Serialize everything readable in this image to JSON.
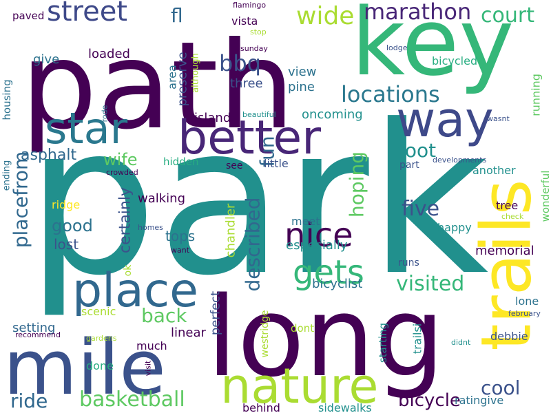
{
  "palette": {
    "background": "#ffffff",
    "dark_purple": "#440154",
    "purple": "#482677",
    "indigo": "#3b528b",
    "blue": "#2c728e",
    "teal": "#21908d",
    "green_teal": "#27ad81",
    "green": "#5dc863",
    "lime": "#aadc32",
    "yellow": "#fde725"
  },
  "words": [
    {
      "text": "park",
      "orientation": "horizontal",
      "color": "#21908d"
    },
    {
      "text": "path",
      "orientation": "horizontal",
      "color": "#440154"
    },
    {
      "text": "key",
      "orientation": "horizontal",
      "color": "#35b779"
    },
    {
      "text": "long",
      "orientation": "horizontal",
      "color": "#440154"
    },
    {
      "text": "mile",
      "orientation": "horizontal",
      "color": "#3b528b"
    },
    {
      "text": "trails",
      "orientation": "vertical",
      "color": "#fde725"
    },
    {
      "text": "nature",
      "orientation": "horizontal",
      "color": "#aadc32"
    },
    {
      "text": "place",
      "orientation": "horizontal",
      "color": "#31688e"
    },
    {
      "text": "way",
      "orientation": "horizontal",
      "color": "#3e4989"
    },
    {
      "text": "better",
      "orientation": "horizontal",
      "color": "#482677"
    },
    {
      "text": "star",
      "orientation": "horizontal",
      "color": "#2a788e"
    },
    {
      "text": "nice",
      "orientation": "horizontal",
      "color": "#440154"
    },
    {
      "text": "gets",
      "orientation": "horizontal",
      "color": "#35b779"
    },
    {
      "text": "street",
      "orientation": "horizontal",
      "color": "#3e4989"
    },
    {
      "text": "marathon",
      "orientation": "horizontal",
      "color": "#482677"
    },
    {
      "text": "court",
      "orientation": "horizontal",
      "color": "#35b779"
    },
    {
      "text": "wide",
      "orientation": "horizontal",
      "color": "#aadc32"
    },
    {
      "text": "fl",
      "orientation": "horizontal",
      "color": "#31688e"
    },
    {
      "text": "locations",
      "orientation": "horizontal",
      "color": "#2a788e"
    },
    {
      "text": "bbq",
      "orientation": "horizontal",
      "color": "#3b528b"
    },
    {
      "text": "described",
      "orientation": "vertical",
      "color": "#31688e"
    },
    {
      "text": "fun",
      "orientation": "vertical",
      "color": "#31688e"
    },
    {
      "text": "hoping",
      "orientation": "vertical",
      "color": "#5ec962"
    },
    {
      "text": "five",
      "orientation": "horizontal",
      "color": "#3b528b"
    },
    {
      "text": "foot",
      "orientation": "horizontal",
      "color": "#21908d"
    },
    {
      "text": "visited",
      "orientation": "horizontal",
      "color": "#35b779"
    },
    {
      "text": "placefrom",
      "orientation": "vertical",
      "color": "#31688e"
    },
    {
      "text": "basketball",
      "orientation": "horizontal",
      "color": "#5ec962"
    },
    {
      "text": "ride",
      "orientation": "horizontal",
      "color": "#31688e"
    },
    {
      "text": "cool",
      "orientation": "horizontal",
      "color": "#3b528b"
    },
    {
      "text": "bicycle",
      "orientation": "horizontal",
      "color": "#440154"
    },
    {
      "text": "back",
      "orientation": "horizontal",
      "color": "#5ec962"
    },
    {
      "text": "wife",
      "orientation": "horizontal",
      "color": "#5ec962"
    },
    {
      "text": "asphalt",
      "orientation": "horizontal",
      "color": "#31688e"
    },
    {
      "text": "good",
      "orientation": "horizontal",
      "color": "#2c728e"
    },
    {
      "text": "lost",
      "orientation": "horizontal",
      "color": "#3b528b"
    },
    {
      "text": "certainly",
      "orientation": "vertical",
      "color": "#3b528b"
    },
    {
      "text": "ok",
      "orientation": "vertical",
      "color": "#aadc32"
    },
    {
      "text": "tops",
      "orientation": "horizontal",
      "color": "#2c728e"
    },
    {
      "text": "walking",
      "orientation": "horizontal",
      "color": "#440154"
    },
    {
      "text": "ridge",
      "orientation": "horizontal",
      "color": "#fde725"
    },
    {
      "text": "chandler",
      "orientation": "vertical",
      "color": "#aadc32"
    },
    {
      "text": "setting",
      "orientation": "horizontal",
      "color": "#31688e"
    },
    {
      "text": "scenic",
      "orientation": "horizontal",
      "color": "#aadc32"
    },
    {
      "text": "linear",
      "orientation": "horizontal",
      "color": "#440154"
    },
    {
      "text": "perfect",
      "orientation": "vertical",
      "color": "#3b528b"
    },
    {
      "text": "westridge",
      "orientation": "vertical",
      "color": "#aadc32"
    },
    {
      "text": "much",
      "orientation": "horizontal",
      "color": "#440154"
    },
    {
      "text": "done",
      "orientation": "horizontal",
      "color": "#27ad81"
    },
    {
      "text": "behind",
      "orientation": "horizontal",
      "color": "#440154"
    },
    {
      "text": "sidewalks",
      "orientation": "horizontal",
      "color": "#21908d"
    },
    {
      "text": "starting",
      "orientation": "vertical",
      "color": "#21908d"
    },
    {
      "text": "trailsi",
      "orientation": "vertical",
      "color": "#21908d"
    },
    {
      "text": "dont",
      "orientation": "horizontal",
      "color": "#aadc32"
    },
    {
      "text": "debbie",
      "orientation": "horizontal",
      "color": "#3b528b"
    },
    {
      "text": "lone",
      "orientation": "horizontal",
      "color": "#2c728e"
    },
    {
      "text": "ratingive",
      "orientation": "horizontal",
      "color": "#2c728e"
    },
    {
      "text": "february",
      "orientation": "horizontal",
      "color": "#3b528b"
    },
    {
      "text": "didnt",
      "orientation": "horizontal",
      "color": "#21908d"
    },
    {
      "text": "wonderful",
      "orientation": "vertical",
      "color": "#5ec962"
    },
    {
      "text": "tree",
      "orientation": "horizontal",
      "color": "#440154"
    },
    {
      "text": "check",
      "orientation": "horizontal",
      "color": "#aadc32"
    },
    {
      "text": "memorial",
      "orientation": "horizontal",
      "color": "#440154"
    },
    {
      "text": "happy",
      "orientation": "horizontal",
      "color": "#21908d"
    },
    {
      "text": "another",
      "orientation": "horizontal",
      "color": "#21908d"
    },
    {
      "text": "part",
      "orientation": "horizontal",
      "color": "#3b528b"
    },
    {
      "text": "developments",
      "orientation": "horizontal",
      "color": "#3b528b"
    },
    {
      "text": "meet",
      "orientation": "horizontal",
      "color": "#2c728e"
    },
    {
      "text": "especially",
      "orientation": "horizontal",
      "color": "#21908d"
    },
    {
      "text": "bicyclist",
      "orientation": "horizontal",
      "color": "#2c728e"
    },
    {
      "text": "runs",
      "orientation": "horizontal",
      "color": "#3b528b"
    },
    {
      "text": "little",
      "orientation": "horizontal",
      "color": "#3b528b"
    },
    {
      "text": "see",
      "orientation": "horizontal",
      "color": "#440154"
    },
    {
      "text": "island",
      "orientation": "horizontal",
      "color": "#440154"
    },
    {
      "text": "oncoming",
      "orientation": "horizontal",
      "color": "#21908d"
    },
    {
      "text": "beautiful",
      "orientation": "horizontal",
      "color": "#21908d"
    },
    {
      "text": "view",
      "orientation": "horizontal",
      "color": "#2c728e"
    },
    {
      "text": "pine",
      "orientation": "horizontal",
      "color": "#2c728e"
    },
    {
      "text": "three",
      "orientation": "horizontal",
      "color": "#3b528b"
    },
    {
      "text": "vista",
      "orientation": "horizontal",
      "color": "#440154"
    },
    {
      "text": "flamingo",
      "orientation": "horizontal",
      "color": "#440154"
    },
    {
      "text": "stop",
      "orientation": "horizontal",
      "color": "#aadc32"
    },
    {
      "text": "sunday",
      "orientation": "horizontal",
      "color": "#440154"
    },
    {
      "text": "lodge",
      "orientation": "horizontal",
      "color": "#3b528b"
    },
    {
      "text": "bicycled",
      "orientation": "horizontal",
      "color": "#27ad81"
    },
    {
      "text": "running",
      "orientation": "vertical",
      "color": "#5ec962"
    },
    {
      "text": "wasnt",
      "orientation": "horizontal",
      "color": "#3b528b"
    },
    {
      "text": "area",
      "orientation": "vertical",
      "color": "#2c728e"
    },
    {
      "text": "preserve",
      "orientation": "vertical",
      "color": "#3b528b"
    },
    {
      "text": "although",
      "orientation": "vertical",
      "color": "#aadc32"
    },
    {
      "text": "loaded",
      "orientation": "horizontal",
      "color": "#440154"
    },
    {
      "text": "give",
      "orientation": "horizontal",
      "color": "#2c728e"
    },
    {
      "text": "paved",
      "orientation": "horizontal",
      "color": "#440154"
    },
    {
      "text": "housing",
      "orientation": "vertical",
      "color": "#2c728e"
    },
    {
      "text": "ending",
      "orientation": "vertical",
      "color": "#2c728e"
    },
    {
      "text": "rode",
      "orientation": "vertical",
      "color": "#2c728e"
    },
    {
      "text": "crowded",
      "orientation": "horizontal",
      "color": "#440154"
    },
    {
      "text": "hidden",
      "orientation": "horizontal",
      "color": "#27ad81"
    },
    {
      "text": "homes",
      "orientation": "horizontal",
      "color": "#3b528b"
    },
    {
      "text": "want",
      "orientation": "horizontal",
      "color": "#440154"
    },
    {
      "text": "recommend",
      "orientation": "horizontal",
      "color": "#440154"
    },
    {
      "text": "gardens",
      "orientation": "horizontal",
      "color": "#aadc32"
    },
    {
      "text": "visit",
      "orientation": "vertical",
      "color": "#440154"
    }
  ]
}
